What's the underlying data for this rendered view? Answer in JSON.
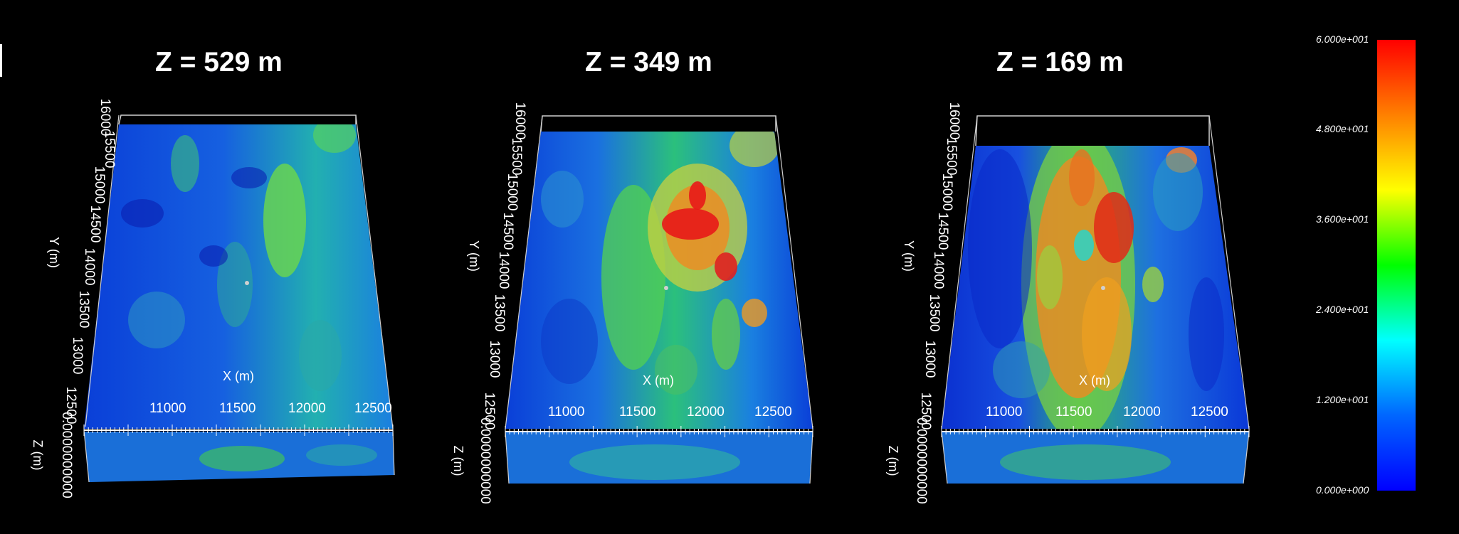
{
  "panels": [
    {
      "title": "Z = 529 m"
    },
    {
      "title": "Z = 349 m"
    },
    {
      "title": "Z = 169 m"
    }
  ],
  "axes": {
    "x_label": "X (m)",
    "y_label": "Y (m)",
    "z_label": "Z (m)",
    "x_ticks": [
      "11000",
      "11500",
      "12000",
      "12500"
    ],
    "y_ticks": [
      "16000",
      "15500",
      "15000",
      "14500",
      "14000",
      "13500",
      "13000",
      "12500"
    ],
    "z_tick_text": "0.0000000000"
  },
  "colorbar": {
    "labels": [
      "6.000e+001",
      "4.800e+001",
      "3.600e+001",
      "2.400e+001",
      "1.200e+001",
      "0.000e+000"
    ],
    "min": 0,
    "max": 60,
    "colors": [
      "#ff0000",
      "#ff8000",
      "#ffff00",
      "#00ff00",
      "#00ffff",
      "#0066ff",
      "#0000ff"
    ]
  }
}
